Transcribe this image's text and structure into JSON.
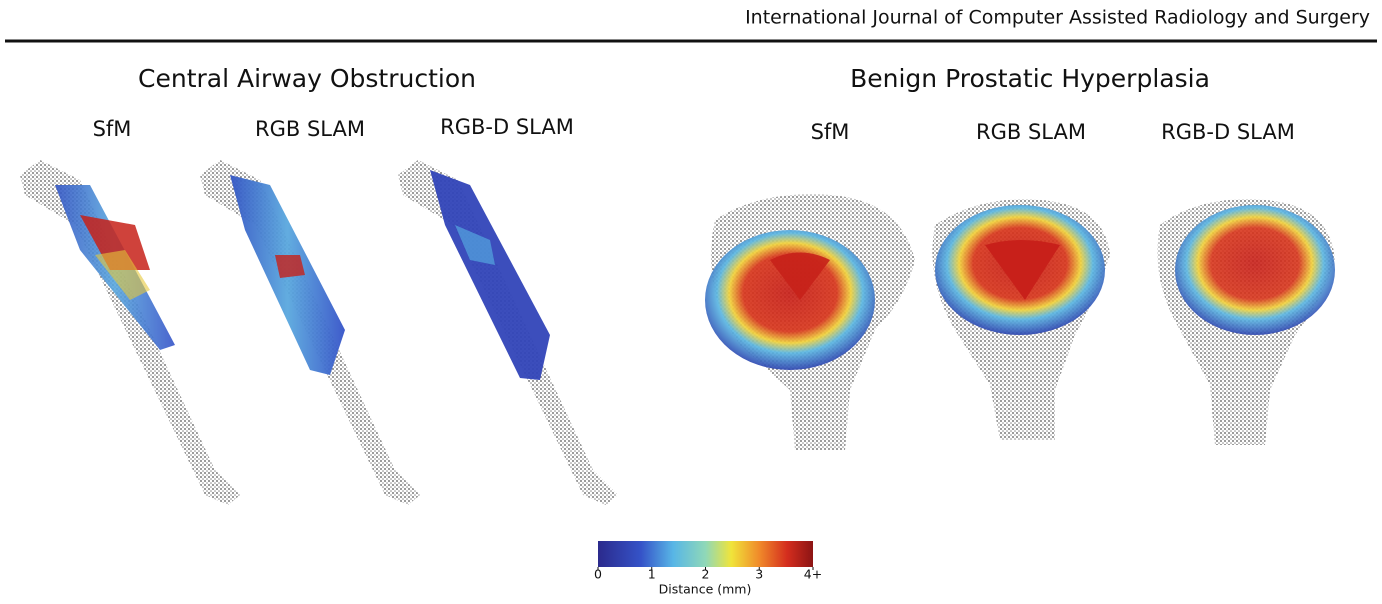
{
  "header": {
    "journal": "International Journal of Computer Assisted Radiology and Surgery"
  },
  "panels": [
    {
      "title": "Central Airway Obstruction",
      "methods": [
        "SfM",
        "RGB SLAM",
        "RGB-D SLAM"
      ]
    },
    {
      "title": "Benign Prostatic Hyperplasia",
      "methods": [
        "SfM",
        "RGB SLAM",
        "RGB-D SLAM"
      ]
    }
  ],
  "colorbar": {
    "label": "Distance (mm)",
    "lim": [
      0,
      4
    ],
    "ticks": [
      0,
      1,
      2,
      3,
      {
        "value": 4,
        "label": "4+"
      }
    ]
  }
}
